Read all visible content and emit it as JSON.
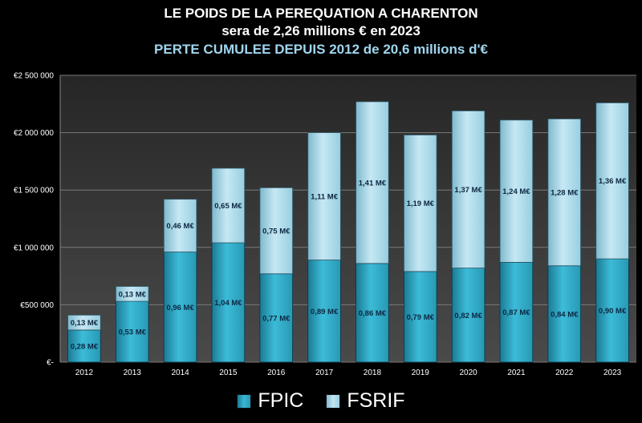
{
  "title": {
    "line1": "LE POIDS DE LA PEREQUATION A CHARENTON",
    "line2": "sera de 2,26 millions € en 2023",
    "line3": "PERTE CUMULEE DEPUIS 2012 de 20,6 millions d'€"
  },
  "colors": {
    "fpic": "#2ea9c6",
    "fsrif": "#a9dbea",
    "plot_bg": "#3a3a3a",
    "title_accent": "#9fd6ee"
  },
  "legend": {
    "fpic": "FPIC",
    "fsrif": "FSRIF"
  },
  "chart_data": {
    "type": "bar",
    "stacked": true,
    "title": "LE POIDS DE LA PEREQUATION A CHARENTON",
    "xlabel": "",
    "ylabel": "",
    "ylim": [
      0,
      2500000
    ],
    "yticks": [
      0,
      500000,
      1000000,
      1500000,
      2000000,
      2500000
    ],
    "ytick_labels": [
      "€-",
      "€500 000",
      "€1 000 000",
      "€1 500 000",
      "€2 000 000",
      "€2 500 000"
    ],
    "grid": true,
    "legend_position": "bottom",
    "categories": [
      "2012",
      "2013",
      "2014",
      "2015",
      "2016",
      "2017",
      "2018",
      "2019",
      "2020",
      "2021",
      "2022",
      "2023"
    ],
    "series": [
      {
        "name": "FPIC",
        "values": [
          280000,
          530000,
          960000,
          1040000,
          770000,
          890000,
          860000,
          790000,
          820000,
          870000,
          840000,
          900000
        ],
        "labels": [
          "0,28 M€",
          "0,53 M€",
          "0,96 M€",
          "1,04 M€",
          "0,77 M€",
          "0,89 M€",
          "0,86 M€",
          "0,79 M€",
          "0,82 M€",
          "0,87 M€",
          "0,84 M€",
          "0,90 M€"
        ]
      },
      {
        "name": "FSRIF",
        "values": [
          130000,
          130000,
          460000,
          650000,
          750000,
          1110000,
          1410000,
          1190000,
          1370000,
          1240000,
          1280000,
          1360000
        ],
        "labels": [
          "0,13 M€",
          "0,13 M€",
          "0,46 M€",
          "0,65 M€",
          "0,75 M€",
          "1,11 M€",
          "1,41 M€",
          "1,19 M€",
          "1,37 M€",
          "1,24 M€",
          "1,28 M€",
          "1,36 M€"
        ]
      }
    ]
  }
}
